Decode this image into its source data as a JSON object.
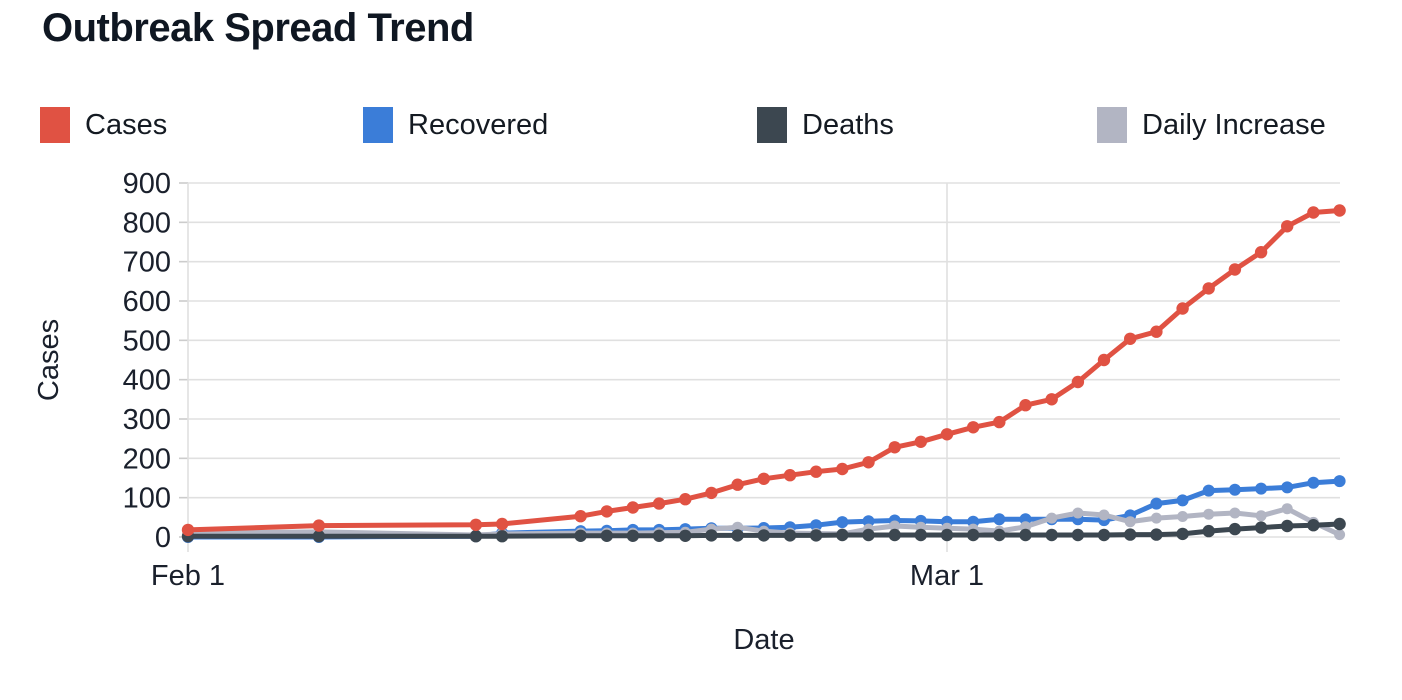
{
  "title": "Outbreak Spread Trend",
  "legend": {
    "items": [
      {
        "label": "Cases",
        "color": "#e05243"
      },
      {
        "label": "Recovered",
        "color": "#3b7dd8"
      },
      {
        "label": "Deaths",
        "color": "#3c4750"
      },
      {
        "label": "Daily Increase",
        "color": "#b2b5c3"
      }
    ]
  },
  "chart_data": {
    "type": "line",
    "title": "Outbreak Spread Trend",
    "xlabel": "Date",
    "ylabel": "Cases",
    "ylim": [
      0,
      900
    ],
    "grid": true,
    "markers": true,
    "legend_position": "top",
    "y_ticks": [
      0,
      100,
      200,
      300,
      400,
      500,
      600,
      700,
      800,
      900
    ],
    "x_ticks": [
      {
        "label": "Feb 1",
        "day": 0
      },
      {
        "label": "Mar 1",
        "day": 29
      }
    ],
    "x_dates": [
      "Feb 1",
      "Feb 6",
      "Feb 12",
      "Feb 13",
      "Feb 16",
      "Feb 17",
      "Feb 18",
      "Feb 19",
      "Feb 20",
      "Feb 21",
      "Feb 22",
      "Feb 23",
      "Feb 24",
      "Feb 25",
      "Feb 26",
      "Feb 27",
      "Feb 28",
      "Feb 29",
      "Mar 1",
      "Mar 2",
      "Mar 3",
      "Mar 4",
      "Mar 5",
      "Mar 6",
      "Mar 7",
      "Mar 8",
      "Mar 9",
      "Mar 10",
      "Mar 11",
      "Mar 12",
      "Mar 13",
      "Mar 14",
      "Mar 15",
      "Mar 16"
    ],
    "day_offsets": [
      0,
      5,
      11,
      12,
      15,
      16,
      17,
      18,
      19,
      20,
      21,
      22,
      23,
      24,
      25,
      26,
      27,
      28,
      29,
      30,
      31,
      32,
      33,
      34,
      35,
      36,
      37,
      38,
      39,
      40,
      41,
      42,
      43,
      44
    ],
    "series": [
      {
        "name": "Cases",
        "color": "#e05243",
        "values": [
          18,
          29,
          31,
          33,
          53,
          65,
          75,
          85,
          96,
          112,
          133,
          148,
          157,
          166,
          173,
          190,
          228,
          242,
          261,
          279,
          292,
          335,
          350,
          394,
          450,
          504,
          522,
          581,
          632,
          680,
          724,
          790,
          825,
          830
        ]
      },
      {
        "name": "Recovered",
        "color": "#3b7dd8",
        "values": [
          0,
          0,
          2,
          10,
          15,
          16,
          18,
          18,
          20,
          22,
          22,
          23,
          25,
          30,
          38,
          40,
          42,
          41,
          39,
          39,
          45,
          45,
          45,
          45,
          43,
          55,
          85,
          93,
          118,
          120,
          123,
          126,
          138,
          142
        ]
      },
      {
        "name": "Deaths",
        "color": "#3c4750",
        "values": [
          2,
          2,
          2,
          2,
          3,
          3,
          3,
          3,
          3,
          4,
          4,
          4,
          4,
          4,
          5,
          5,
          5,
          5,
          5,
          5,
          5,
          5,
          5,
          5,
          5,
          6,
          6,
          8,
          15,
          20,
          24,
          28,
          30,
          33
        ]
      },
      {
        "name": "Daily Increase",
        "color": "#b2b5c3",
        "values": [
          10,
          13,
          5,
          8,
          10,
          10,
          10,
          11,
          12,
          20,
          25,
          15,
          10,
          9,
          8,
          20,
          28,
          25,
          22,
          20,
          15,
          26,
          48,
          61,
          56,
          39,
          48,
          52,
          58,
          61,
          54,
          72,
          37,
          6
        ]
      }
    ]
  },
  "colors": {
    "background": "#ffffff",
    "grid": "#e0e0e0",
    "tick_stub": "#cccccc",
    "tick_text": "#1a202c",
    "axis_label_text": "#1a202c",
    "title_text": "#0f1722"
  }
}
